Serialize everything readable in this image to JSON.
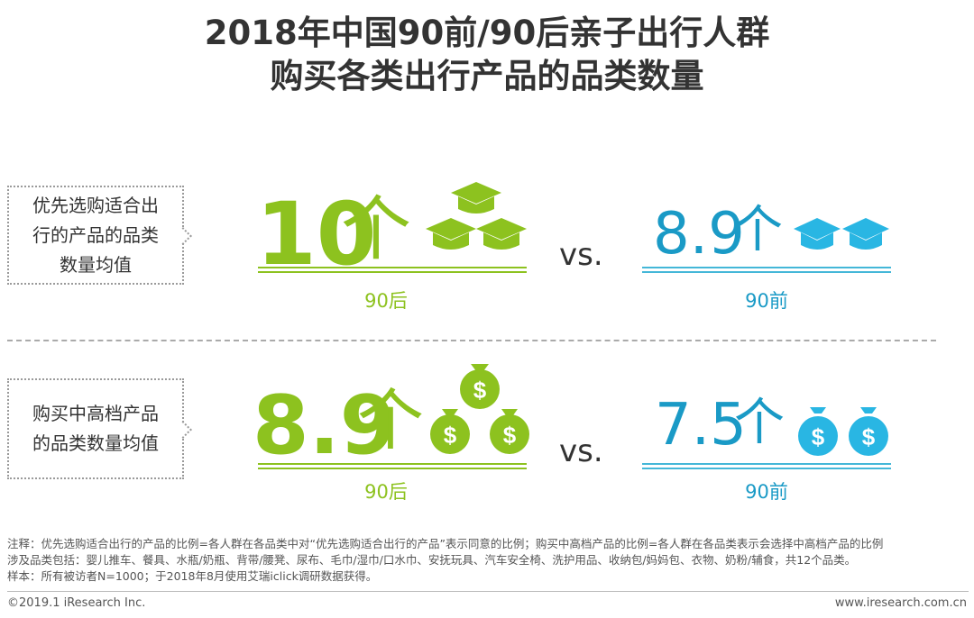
{
  "title": {
    "line1": "2018年中国90前/90后亲子出行人群",
    "line2": "购买各类出行产品的品类数量"
  },
  "chart_data": {
    "type": "table",
    "unit": "个",
    "rows": [
      {
        "label": "优先选购适合出行的产品的品类数量均值",
        "label_lines": [
          "优先选购适合出",
          "行的产品的品类",
          "数量均值"
        ],
        "icon": "graduation-cap-icon",
        "values": [
          {
            "group": "90后",
            "value": 10,
            "display": "10"
          },
          {
            "group": "90前",
            "value": 8.9,
            "display": "8.9"
          }
        ]
      },
      {
        "label": "购买中高档产品的品类数量均值",
        "label_lines": [
          "购买中高档产品",
          "的品类数量均值"
        ],
        "icon": "money-bag-icon",
        "values": [
          {
            "group": "90后",
            "value": 8.9,
            "display": "8.9"
          },
          {
            "group": "90前",
            "value": 7.5,
            "display": "7.5"
          }
        ]
      }
    ],
    "vs_label": "vs."
  },
  "colors": {
    "group_90hou": "#8dc21f",
    "group_90qian": "#1a9ac6"
  },
  "notes": {
    "line1": "注释：优先选购适合出行的产品的比例=各人群在各品类中对“优先选购适合出行的产品”表示同意的比例；购买中高档产品的比例=各人群在各品类表示会选择中高档产品的比例",
    "line2": "涉及品类包括：婴儿推车、餐具、水瓶/奶瓶、背带/腰凳、尿布、毛巾/湿巾/口水巾、安抚玩具、汽车安全椅、洗护用品、收纳包/妈妈包、衣物、奶粉/辅食，共12个品类。",
    "line3": "样本：所有被访者N=1000；于2018年8月使用艾瑞iclick调研数据获得。"
  },
  "footer": {
    "copyright": "©2019.1 iResearch Inc.",
    "url": "www.iresearch.com.cn"
  }
}
